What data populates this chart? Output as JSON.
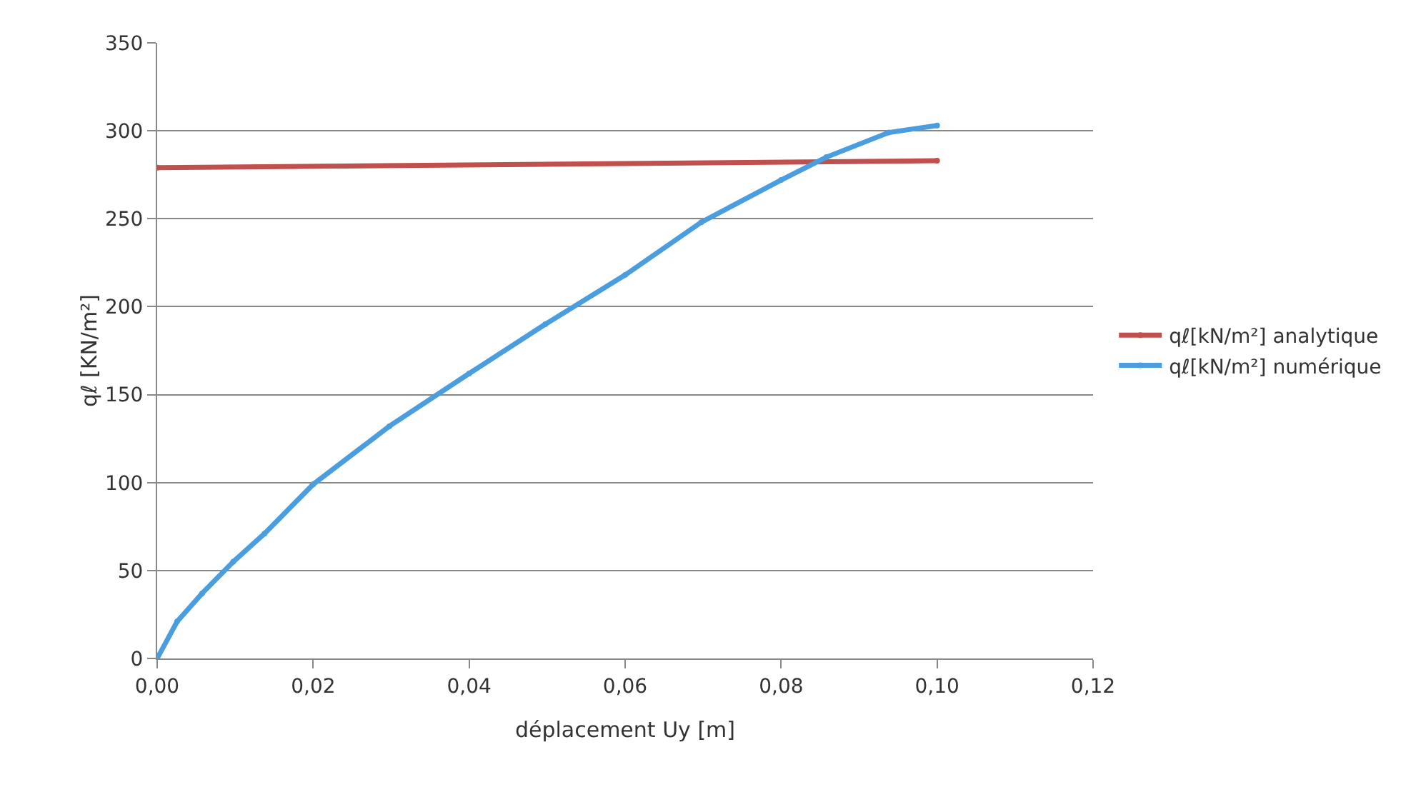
{
  "chart_data": {
    "type": "line",
    "xlabel": "déplacement Uy [m]",
    "ylabel": "qℓ [KN/m²]",
    "x": [
      0,
      0.00256,
      0.00576,
      0.00976,
      0.01376,
      0.02,
      0.02976,
      0.04,
      0.04976,
      0.06,
      0.06976,
      0.08,
      0.0858,
      0.0938,
      0.1
    ],
    "series": [
      {
        "name": "qℓ[kN/m²] analytique",
        "color": "#c0504d",
        "x": [
          0,
          0.1
        ],
        "values": [
          279,
          283
        ]
      },
      {
        "name": "qℓ[kN/m²] numérique",
        "color": "#4a9ee0",
        "values": [
          0,
          21,
          37,
          55,
          71,
          99,
          132,
          162,
          190,
          218,
          248,
          272,
          285,
          299,
          303
        ]
      }
    ],
    "xlim": [
      0,
      0.12
    ],
    "xticks": [
      {
        "value": 0,
        "label": "0,00"
      },
      {
        "value": 0.02,
        "label": "0,02"
      },
      {
        "value": 0.04,
        "label": "0,04"
      },
      {
        "value": 0.06,
        "label": "0,06"
      },
      {
        "value": 0.08,
        "label": "0,08"
      },
      {
        "value": 0.1,
        "label": "0,10"
      },
      {
        "value": 0.12,
        "label": "0,12"
      }
    ],
    "ylim": [
      0,
      350
    ],
    "yticks": [
      0,
      50,
      100,
      150,
      200,
      250,
      300,
      350
    ],
    "grid": "y",
    "legend": "right",
    "marker": "circle",
    "line_style": "solid"
  }
}
